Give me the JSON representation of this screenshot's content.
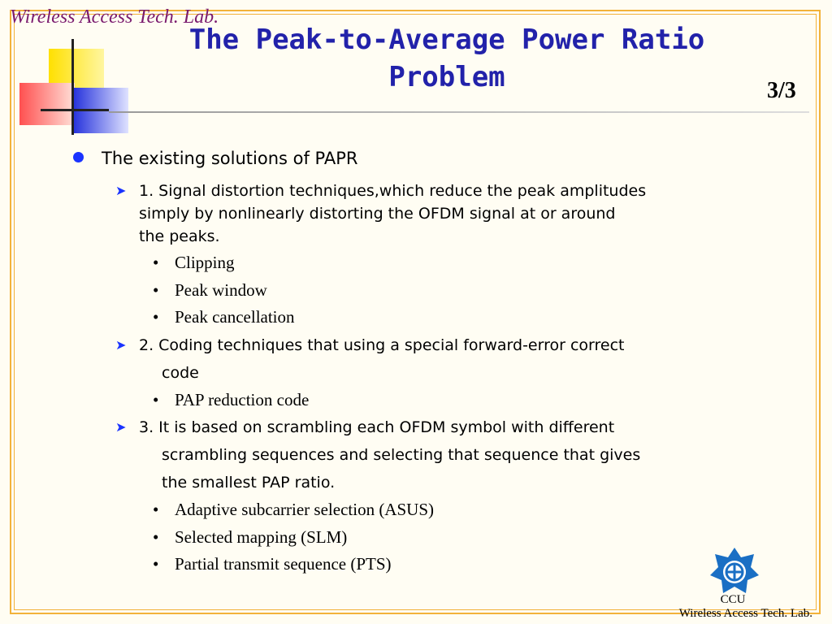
{
  "header": {
    "lab_label": "Wireless Access Tech. Lab.",
    "title_line1": "The Peak-to-Average Power Ratio",
    "title_line2": "Problem",
    "page_number": "3/3"
  },
  "content": {
    "heading": "The existing solutions of PAPR",
    "items": [
      {
        "lines": [
          "1. Signal distortion techniques,which reduce the peak amplitudes",
          "simply by nonlinearly  distorting the OFDM signal at or around",
          "the peaks."
        ],
        "subitems": [
          "Clipping",
          "Peak window",
          "Peak cancellation"
        ]
      },
      {
        "lines": [
          "2. Coding techniques that using a special forward-error correct",
          "code"
        ],
        "subitems": [
          "PAP reduction code"
        ]
      },
      {
        "lines": [
          "3. It is based on scrambling each OFDM symbol with different",
          "scrambling sequences and selecting that sequence that gives",
          "the smallest PAP ratio."
        ],
        "subitems": [
          "Adaptive subcarrier selection (ASUS)",
          "Selected mapping (SLM)",
          "Partial transmit sequence (PTS)"
        ]
      }
    ]
  },
  "footer": {
    "logo_icon": "ccu-emblem-icon",
    "ccu": "CCU",
    "lab": "Wireless Access Tech. Lab."
  },
  "colors": {
    "title": "#2222aa",
    "bullet": "#1a33ff",
    "frame": "#f2b23a",
    "lab_label": "#7a1a6e"
  }
}
